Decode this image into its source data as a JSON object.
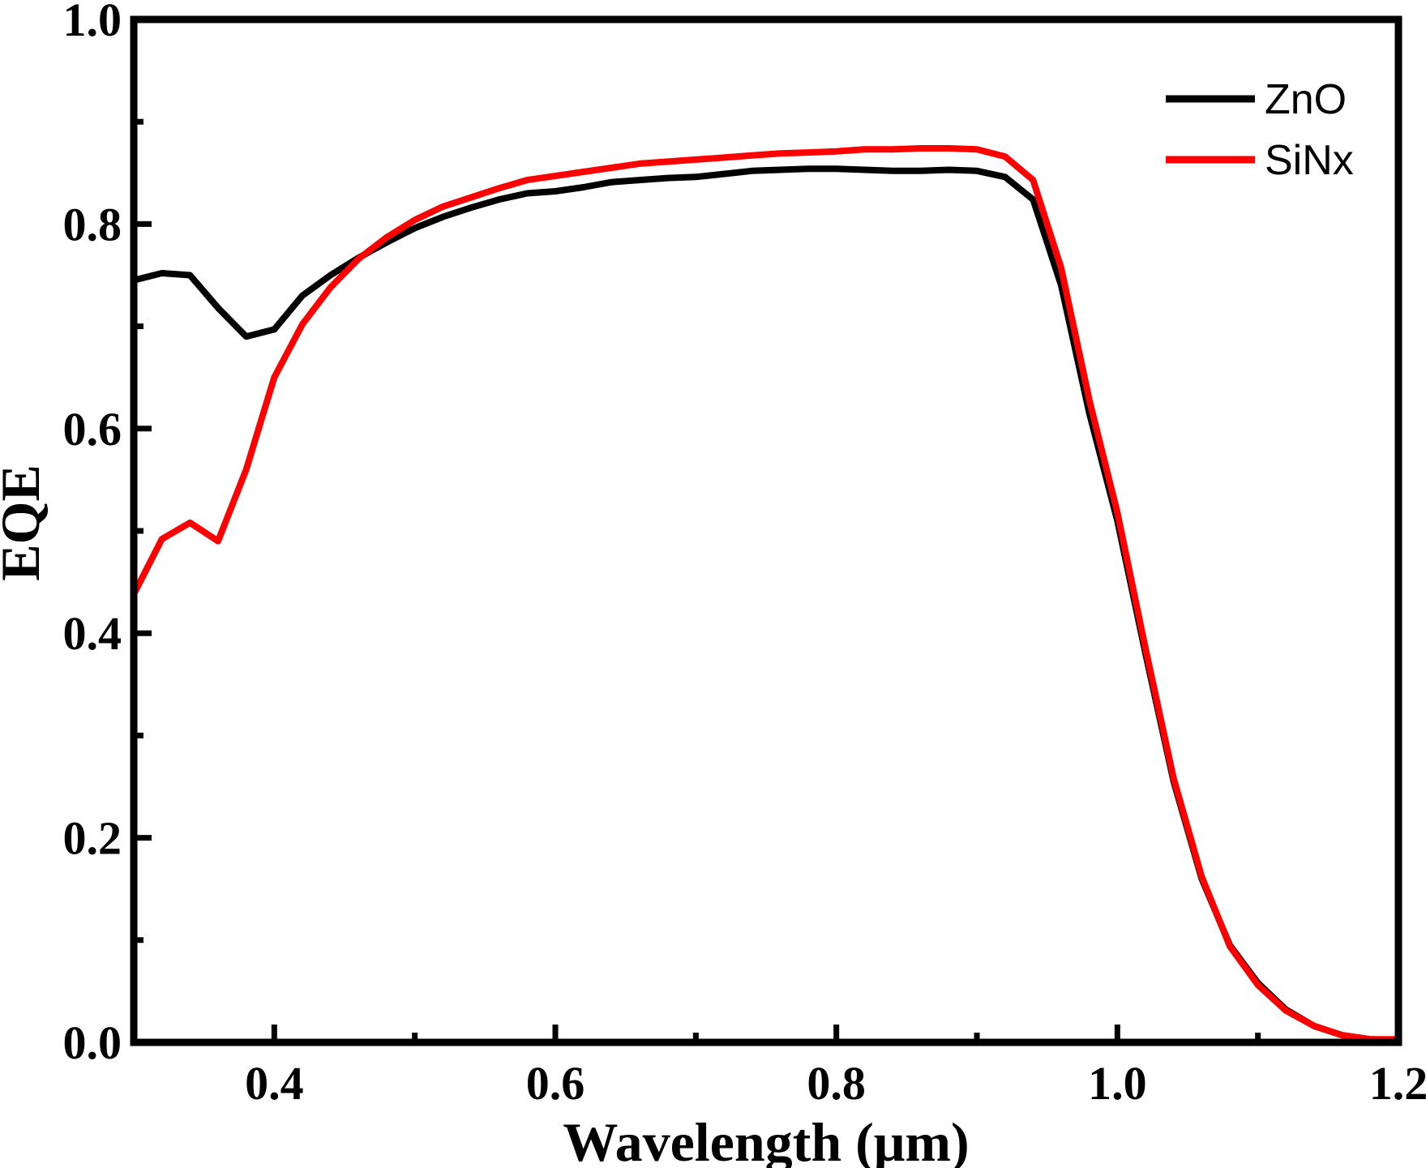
{
  "chart_data": {
    "type": "line",
    "title": "",
    "xlabel": "Wavelength (μm)",
    "ylabel": "EQE",
    "xlim": [
      0.3,
      1.2
    ],
    "ylim": [
      0.0,
      1.0
    ],
    "xticks": [
      0.4,
      0.6,
      0.8,
      1.0,
      1.2
    ],
    "xtick_labels": [
      "0.4",
      "0.6",
      "0.8",
      "1.0",
      "1.2"
    ],
    "yticks": [
      0.0,
      0.2,
      0.4,
      0.6,
      0.8,
      1.0
    ],
    "ytick_labels": [
      "0.0",
      "0.2",
      "0.4",
      "0.6",
      "0.8",
      "1.0"
    ],
    "grid": false,
    "legend_position": "top-right",
    "series": [
      {
        "name": "ZnO",
        "color": "#000000",
        "x": [
          0.3,
          0.32,
          0.34,
          0.36,
          0.38,
          0.4,
          0.42,
          0.44,
          0.46,
          0.48,
          0.5,
          0.52,
          0.54,
          0.56,
          0.58,
          0.6,
          0.62,
          0.64,
          0.66,
          0.68,
          0.7,
          0.72,
          0.74,
          0.76,
          0.78,
          0.8,
          0.82,
          0.84,
          0.86,
          0.88,
          0.9,
          0.92,
          0.94,
          0.96,
          0.98,
          1.0,
          1.02,
          1.04,
          1.06,
          1.08,
          1.1,
          1.12,
          1.14,
          1.16,
          1.18,
          1.2
        ],
        "y": [
          0.745,
          0.752,
          0.75,
          0.718,
          0.69,
          0.697,
          0.73,
          0.75,
          0.767,
          0.782,
          0.796,
          0.807,
          0.816,
          0.824,
          0.83,
          0.832,
          0.836,
          0.841,
          0.843,
          0.845,
          0.846,
          0.849,
          0.852,
          0.853,
          0.854,
          0.854,
          0.853,
          0.852,
          0.852,
          0.853,
          0.852,
          0.846,
          0.824,
          0.74,
          0.615,
          0.51,
          0.38,
          0.255,
          0.16,
          0.095,
          0.058,
          0.032,
          0.016,
          0.007,
          0.003,
          0.002
        ]
      },
      {
        "name": "SiNx",
        "color": "#ff0000",
        "x": [
          0.3,
          0.32,
          0.34,
          0.36,
          0.38,
          0.4,
          0.42,
          0.44,
          0.46,
          0.48,
          0.5,
          0.52,
          0.54,
          0.56,
          0.58,
          0.6,
          0.62,
          0.64,
          0.66,
          0.68,
          0.7,
          0.72,
          0.74,
          0.76,
          0.78,
          0.8,
          0.82,
          0.84,
          0.86,
          0.88,
          0.9,
          0.92,
          0.94,
          0.96,
          0.98,
          1.0,
          1.02,
          1.04,
          1.06,
          1.08,
          1.1,
          1.12,
          1.14,
          1.16,
          1.18,
          1.2
        ],
        "y": [
          0.438,
          0.492,
          0.508,
          0.49,
          0.56,
          0.65,
          0.702,
          0.738,
          0.766,
          0.787,
          0.804,
          0.817,
          0.826,
          0.835,
          0.843,
          0.847,
          0.851,
          0.855,
          0.859,
          0.861,
          0.863,
          0.865,
          0.867,
          0.869,
          0.87,
          0.871,
          0.873,
          0.873,
          0.874,
          0.874,
          0.873,
          0.866,
          0.843,
          0.757,
          0.628,
          0.518,
          0.385,
          0.258,
          0.162,
          0.094,
          0.056,
          0.031,
          0.016,
          0.007,
          0.003,
          0.003
        ]
      }
    ]
  }
}
